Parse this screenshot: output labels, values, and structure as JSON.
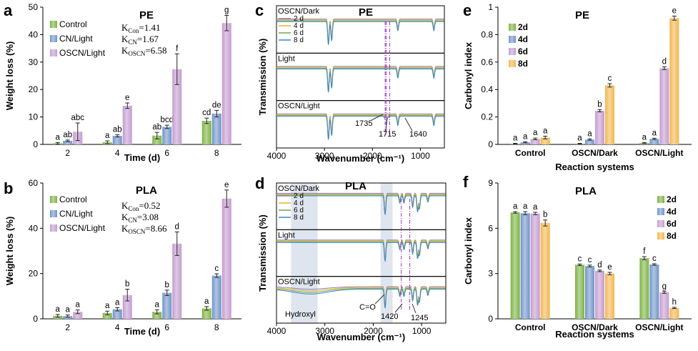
{
  "colors": {
    "green": "#7cb342",
    "blue": "#6f94c8",
    "purple": "#c49bd0",
    "orange": "#f2b64d",
    "gridband": "#c9d3e3"
  },
  "chart_data": [
    {
      "id": "a",
      "panel_label": "a",
      "type": "bar",
      "title": "PE",
      "xlabel": "Time (d)",
      "ylabel": "Weight loss (%)",
      "ylim": [
        0,
        50
      ],
      "yticks": [
        "0",
        "10",
        "20",
        "30",
        "40",
        "50"
      ],
      "categories": [
        "2",
        "4",
        "6",
        "8"
      ],
      "series": [
        {
          "name": "Control",
          "color_key": "green",
          "values": [
            0.4,
            0.8,
            3.2,
            8.6
          ],
          "errors": [
            0.3,
            0.5,
            1.2,
            1.0
          ],
          "labels": [
            "a",
            "a",
            "ab",
            "cd"
          ]
        },
        {
          "name": "CN/Light",
          "color_key": "blue",
          "values": [
            1.3,
            3.1,
            6.4,
            11.2
          ],
          "errors": [
            0.3,
            0.4,
            0.6,
            1.2
          ],
          "labels": [
            "ab",
            "ab",
            "bcd",
            "de"
          ]
        },
        {
          "name": "OSCN/Light",
          "color_key": "purple",
          "values": [
            4.6,
            14.1,
            27.4,
            44.2
          ],
          "errors": [
            3.2,
            1.0,
            5.6,
            2.8
          ],
          "labels": [
            "abc",
            "e",
            "f",
            "g"
          ]
        }
      ],
      "k_values": [
        "K",
        "Con",
        "=1.41",
        "K",
        "CN",
        "=1.67",
        "K",
        "OSCN",
        "=6.58"
      ]
    },
    {
      "id": "b",
      "panel_label": "b",
      "type": "bar",
      "title": "PLA",
      "xlabel": "Time (d)",
      "ylabel": "Weight loss (%)",
      "ylim": [
        0,
        60
      ],
      "yticks": [
        "0",
        "20",
        "40",
        "60"
      ],
      "categories": [
        "2",
        "4",
        "6",
        "8"
      ],
      "series": [
        {
          "name": "Control",
          "color_key": "green",
          "values": [
            1.3,
            2.6,
            3.1,
            4.6
          ],
          "errors": [
            0.6,
            0.8,
            0.9,
            0.8
          ],
          "labels": [
            "a",
            "a",
            "a",
            "a"
          ]
        },
        {
          "name": "CN/Light",
          "color_key": "blue",
          "values": [
            1.2,
            4.2,
            11.5,
            19.1
          ],
          "errors": [
            0.5,
            0.7,
            1.2,
            0.8
          ],
          "labels": [
            "a",
            "a",
            "b",
            "c"
          ]
        },
        {
          "name": "OSCN/Light",
          "color_key": "purple",
          "values": [
            3.1,
            10.5,
            33.2,
            53.1
          ],
          "errors": [
            0.8,
            2.6,
            5.2,
            3.8
          ],
          "labels": [
            "a",
            "b",
            "d",
            "e"
          ]
        }
      ],
      "k_values": [
        "K",
        "Con",
        "=0.52",
        "K",
        "CN",
        "=3.08",
        "K",
        "OSCN",
        "=8.66"
      ]
    },
    {
      "id": "c",
      "panel_label": "c",
      "type": "line",
      "title": "PE",
      "xlabel": "Wavenumber (cm⁻¹)",
      "ylabel": "Transmission (%)",
      "xlim": [
        4000,
        500
      ],
      "xticks": [
        "4000",
        "3000",
        "2000",
        "1000"
      ],
      "subplots": [
        "OSCN/Dark",
        "Light",
        "OSCN/Light"
      ],
      "legend": [
        "2 d",
        "4 d",
        "6 d",
        "8 d"
      ],
      "legend_colors": [
        "#8e7cc3",
        "#e6b422",
        "#6aa84f",
        "#3d85c6"
      ],
      "annotations": [
        "1735",
        "1715",
        "1640"
      ],
      "markers": [
        1735,
        1715,
        1640
      ]
    },
    {
      "id": "d",
      "panel_label": "d",
      "type": "line",
      "title": "PLA",
      "xlabel": "Wavenumber (cm⁻¹)",
      "ylabel": "Transmission (%)",
      "xlim": [
        4000,
        500
      ],
      "xticks": [
        "4000",
        "3000",
        "2000",
        "1000"
      ],
      "subplots": [
        "OSCN/Dark",
        "Light",
        "OSCN/Light"
      ],
      "legend": [
        "2 d",
        "4 d",
        "6 d",
        "8 d"
      ],
      "legend_colors": [
        "#8e7cc3",
        "#e6b422",
        "#6aa84f",
        "#3d85c6"
      ],
      "annotations": [
        "Hydroxyl",
        "C=O",
        "1420",
        "1245"
      ],
      "markers": [
        1420,
        1245
      ]
    },
    {
      "id": "e",
      "panel_label": "e",
      "type": "bar",
      "title": "PE",
      "xlabel": "Reaction systems",
      "ylabel": "Carbonyl index",
      "ylim": [
        0,
        1
      ],
      "yticks": [
        "0",
        "0.2",
        "0.4",
        "0.6",
        "0.8",
        "1"
      ],
      "categories": [
        "Control",
        "OSCN/Dark",
        "OSCN/Light"
      ],
      "series": [
        {
          "name": "2d",
          "color_key": "green",
          "values": [
            0.005,
            0.005,
            0.01
          ],
          "errors": [
            0.003,
            0.003,
            0.004
          ],
          "labels": [
            "a",
            "a",
            "a"
          ]
        },
        {
          "name": "4d",
          "color_key": "blue",
          "values": [
            0.015,
            0.035,
            0.04
          ],
          "errors": [
            0.004,
            0.005,
            0.005
          ],
          "labels": [
            "a",
            "a",
            "a"
          ]
        },
        {
          "name": "6d",
          "color_key": "purple",
          "values": [
            0.04,
            0.245,
            0.555
          ],
          "errors": [
            0.006,
            0.008,
            0.01
          ],
          "labels": [
            "a",
            "b",
            "d"
          ]
        },
        {
          "name": "8d",
          "color_key": "orange",
          "values": [
            0.05,
            0.43,
            0.92
          ],
          "errors": [
            0.01,
            0.012,
            0.015
          ],
          "labels": [
            "a",
            "c",
            "e"
          ]
        }
      ]
    },
    {
      "id": "f",
      "panel_label": "f",
      "type": "bar",
      "title": "PLA",
      "xlabel": "Reaction systems",
      "ylabel": "Carbonyl index",
      "ylim": [
        0,
        9
      ],
      "yticks": [
        "0",
        "3",
        "6",
        "9"
      ],
      "categories": [
        "Control",
        "OSCN/Dark",
        "OSCN/Light"
      ],
      "series": [
        {
          "name": "2d",
          "color_key": "green",
          "values": [
            7.05,
            3.58,
            4.02
          ],
          "errors": [
            0.05,
            0.05,
            0.1
          ],
          "labels": [
            "a",
            "c",
            "f"
          ]
        },
        {
          "name": "4d",
          "color_key": "blue",
          "values": [
            7.0,
            3.5,
            3.6
          ],
          "errors": [
            0.1,
            0.06,
            0.05
          ],
          "labels": [
            "a",
            "c",
            "c"
          ]
        },
        {
          "name": "6d",
          "color_key": "purple",
          "values": [
            6.98,
            3.18,
            1.75
          ],
          "errors": [
            0.08,
            0.05,
            0.06
          ],
          "labels": [
            "a",
            "d",
            "g"
          ]
        },
        {
          "name": "8d",
          "color_key": "orange",
          "values": [
            6.35,
            3.0,
            0.72
          ],
          "errors": [
            0.2,
            0.08,
            0.04
          ],
          "labels": [
            "b",
            "e",
            "h"
          ]
        }
      ]
    }
  ]
}
